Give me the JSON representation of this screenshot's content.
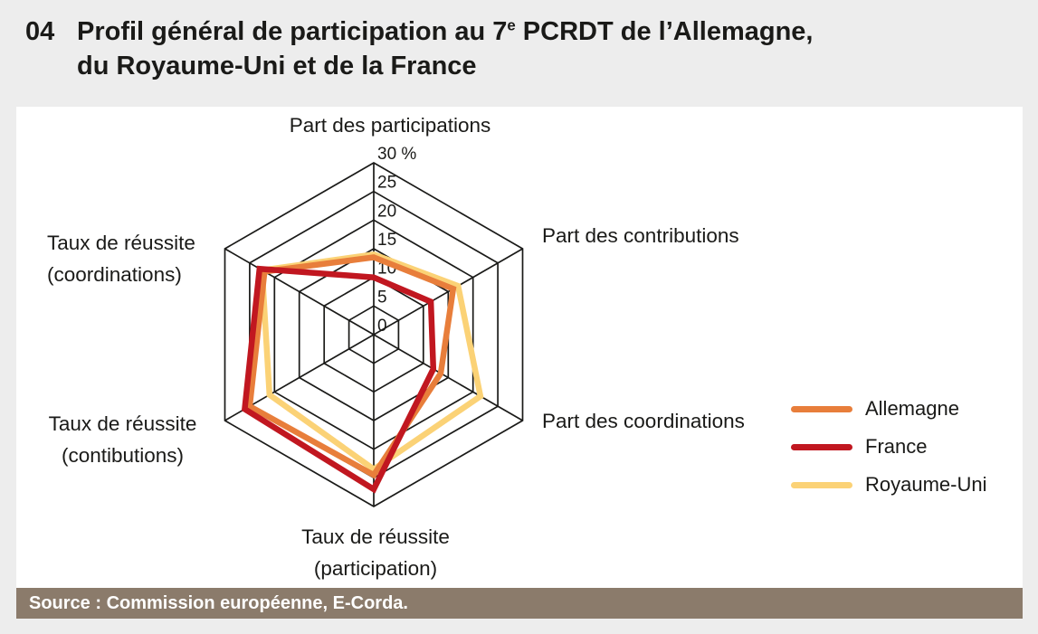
{
  "title": {
    "number": "04",
    "line1_pre": "Profil général de participation au 7",
    "line1_sup": "e",
    "line1_post": " PCRDT de l’Allemagne,",
    "line2": "du Royaume-Uni et de la France"
  },
  "source": {
    "text": "Source : Commission européenne, E-Corda.",
    "bar_color": "#8B7B6B"
  },
  "chart_data": {
    "type": "radar",
    "title": "",
    "unit": "%",
    "rmin": 0,
    "rmax": 30,
    "ring_step": 5,
    "grid": true,
    "grid_color": "#1A1A18",
    "tick_labels": [
      "0",
      "5",
      "10",
      "15",
      "20",
      "25",
      "30 %"
    ],
    "legend_position": "right",
    "axes": [
      {
        "label_line1": "Part des participations",
        "label_line2": ""
      },
      {
        "label_line1": "Part des contributions",
        "label_line2": ""
      },
      {
        "label_line1": "Part des coordinations",
        "label_line2": ""
      },
      {
        "label_line1": "Taux de réussite",
        "label_line2": "(participation)"
      },
      {
        "label_line1": "Taux de réussite",
        "label_line2": "(contibutions)"
      },
      {
        "label_line1": "Taux de réussite",
        "label_line2": "(coordinations)"
      }
    ],
    "series": [
      {
        "name": "Allemagne",
        "color": "#E87E3B",
        "values": [
          13.5,
          16.0,
          13.5,
          24.5,
          25.0,
          22.0
        ]
      },
      {
        "name": "France",
        "color": "#C11720",
        "values": [
          10.0,
          11.5,
          12.0,
          27.0,
          26.0,
          23.0
        ]
      },
      {
        "name": "Royaume-Uni",
        "color": "#FBD276",
        "values": [
          14.0,
          17.0,
          21.5,
          23.5,
          21.0,
          22.5
        ]
      }
    ]
  }
}
